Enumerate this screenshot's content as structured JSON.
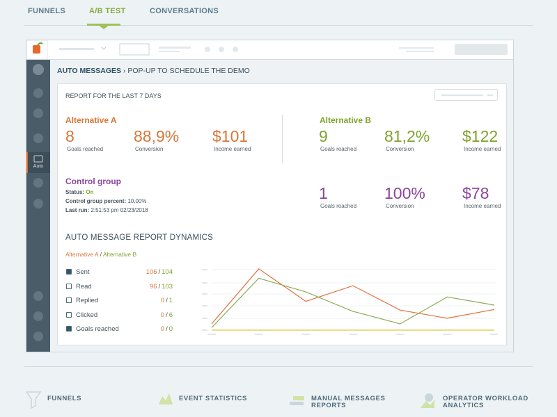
{
  "tabs": [
    "FUNNELS",
    "A/B TEST",
    "CONVERSATIONS"
  ],
  "sidebar_label": "Auto",
  "breadcrumb": {
    "section": "AUTO MESSAGES",
    "page": "› POP-UP TO SCHEDULE THE DEMO"
  },
  "report": {
    "title": "REPORT FOR THE LAST 7 DAYS",
    "alt_a": {
      "name": "Alternative A",
      "stats": [
        {
          "value": "8",
          "label": "Goals reached"
        },
        {
          "value": "88,9%",
          "label": "Conversion"
        },
        {
          "value": "$101",
          "label": "Income earned"
        }
      ]
    },
    "alt_b": {
      "name": "Alternative B",
      "stats": [
        {
          "value": "9",
          "label": "Goals reached"
        },
        {
          "value": "81,2%",
          "label": "Conversion"
        },
        {
          "value": "$122",
          "label": "Income earned"
        }
      ]
    },
    "control": {
      "name": "Control group",
      "status_label": "Status:",
      "status": "On",
      "percent_label": "Control group percent:",
      "percent": "10,00%",
      "last_run_label": "Last run:",
      "last_run": "2:51:53 pm 02/23/2018",
      "stats": [
        {
          "value": "1",
          "label": "Goals reached"
        },
        {
          "value": "100%",
          "label": "Conversion"
        },
        {
          "value": "$78",
          "label": "Income earned"
        }
      ]
    }
  },
  "dynamics": {
    "title": "AUTO MESSAGE REPORT DYNAMICS",
    "legend_a": "Alternative A",
    "separator": "/",
    "legend_b": "Alternative B",
    "rows": [
      {
        "label": "Sent",
        "checked": true,
        "a": 106,
        "b": 104
      },
      {
        "label": "Read",
        "checked": false,
        "a": 96,
        "b": 103
      },
      {
        "label": "Replied",
        "checked": false,
        "a": 0,
        "b": 1
      },
      {
        "label": "Clicked",
        "checked": false,
        "a": 0,
        "b": 6
      },
      {
        "label": "Goals reached",
        "checked": true,
        "a": 0,
        "b": 0
      }
    ]
  },
  "chart": {
    "type": "line",
    "ylim": [
      0,
      100
    ],
    "series": [
      {
        "color": "#e0703a",
        "values": [
          10,
          98,
          46,
          71,
          32,
          19,
          33
        ]
      },
      {
        "color": "#8fab55",
        "values": [
          4,
          83,
          61,
          30,
          10,
          53,
          40
        ]
      },
      {
        "color": "#e8c43a",
        "values": [
          0,
          0,
          0,
          0,
          0,
          0,
          0
        ]
      }
    ]
  },
  "footer": [
    "FUNNELS",
    "EVENT STATISTICS",
    "MANUAL MESSAGES REPORTS",
    "OPERATOR WORKLOAD ANALYTICS"
  ]
}
